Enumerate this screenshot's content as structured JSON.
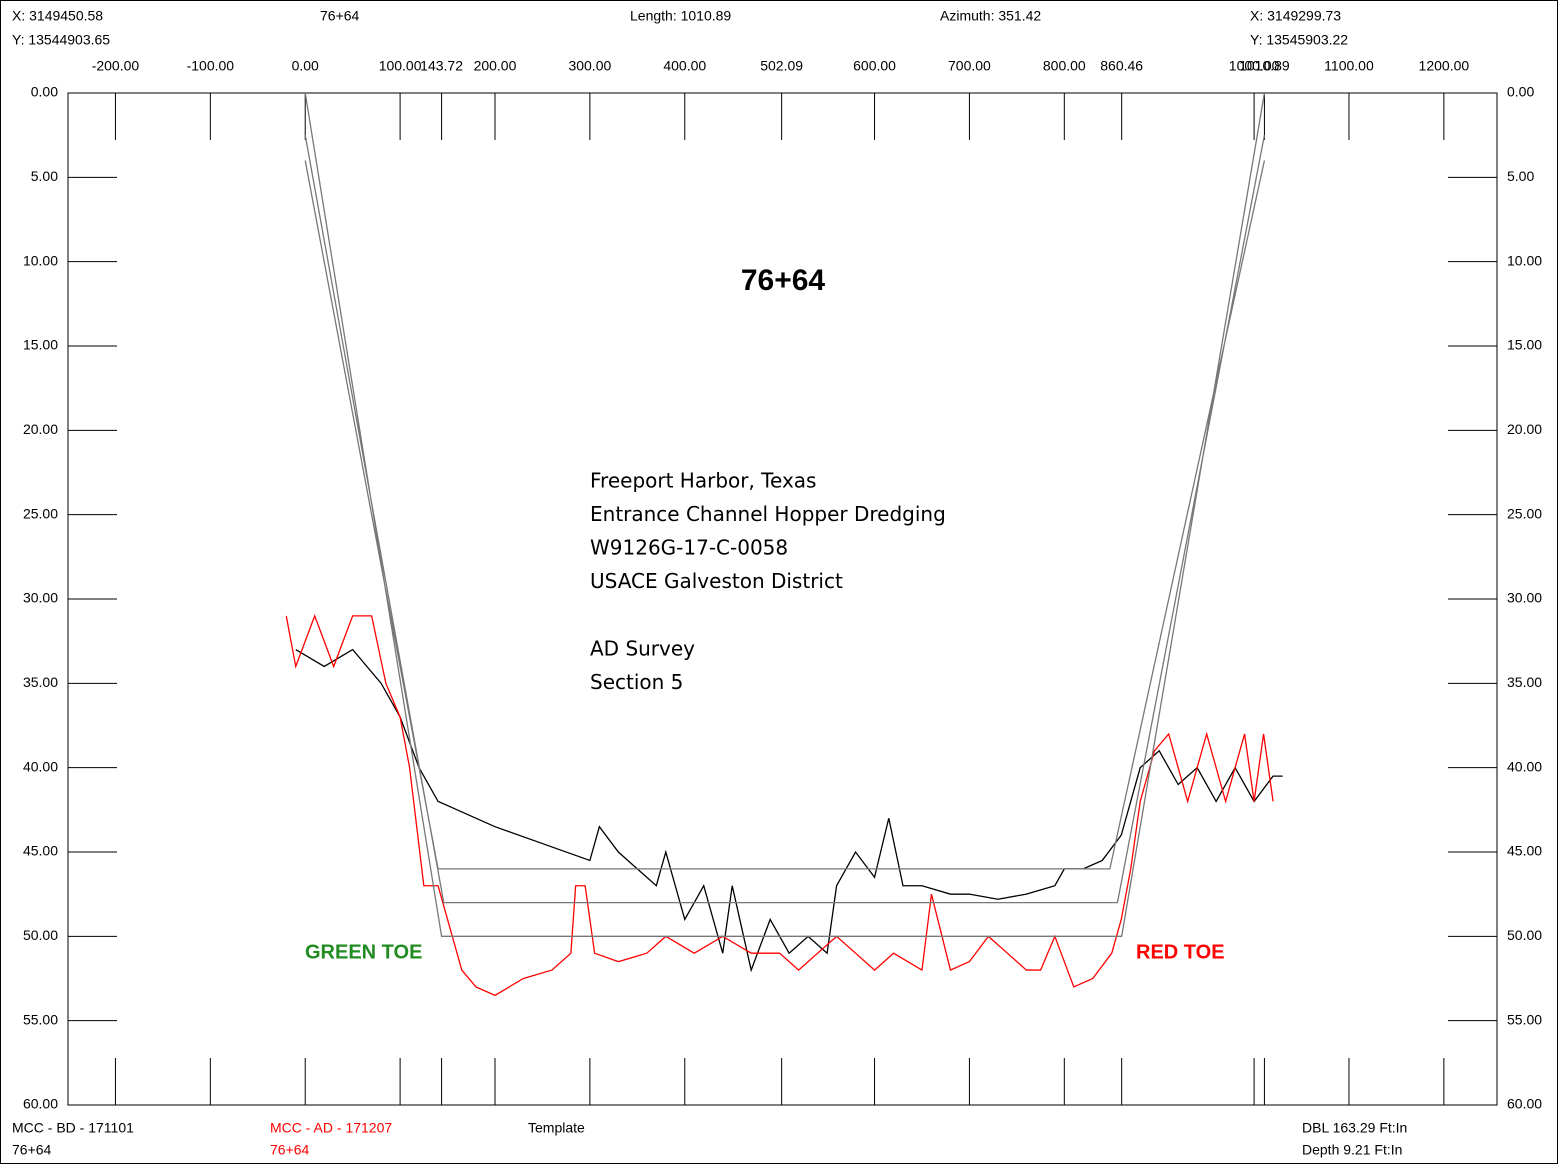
{
  "chart_data": {
    "type": "line",
    "title": "76+64",
    "start_x": "X: 3149450.58",
    "start_y": "Y: 13544903.65",
    "station": "76+64",
    "length": "Length: 1010.89",
    "azimuth": "Azimuth: 351.42",
    "end_x": "X: 3149299.73",
    "end_y": "Y: 13545903.22",
    "dbl": "DBL 163.29 Ft:In",
    "depth": "Depth 9.21 Ft:In",
    "notes": [
      "Freeport Harbor, Texas",
      "Entrance Channel Hopper Dredging",
      "W9126G-17-C-0058",
      "USACE Galveston District"
    ],
    "notes2": [
      "AD Survey",
      "Section 5"
    ],
    "green_toe": "GREEN TOE",
    "red_toe": "RED TOE",
    "xlim": [
      -250,
      1256
    ],
    "ylim": [
      0,
      60
    ],
    "y_inverted": true,
    "xticks": [
      {
        "value": -200,
        "label": "-200.00"
      },
      {
        "value": -100,
        "label": "-100.00"
      },
      {
        "value": 0,
        "label": "0.00"
      },
      {
        "value": 100,
        "label": "100.00"
      },
      {
        "value": 143.72,
        "label": "143.72"
      },
      {
        "value": 200,
        "label": "200.00"
      },
      {
        "value": 300,
        "label": "300.00"
      },
      {
        "value": 400,
        "label": "400.00"
      },
      {
        "value": 502.09,
        "label": "502.09"
      },
      {
        "value": 600,
        "label": "600.00"
      },
      {
        "value": 700,
        "label": "700.00"
      },
      {
        "value": 800,
        "label": "800.00"
      },
      {
        "value": 860.46,
        "label": "860.46"
      },
      {
        "value": 1000,
        "label": "1000.00"
      },
      {
        "value": 1010.89,
        "label": "1010.89"
      },
      {
        "value": 1100,
        "label": "1100.00"
      },
      {
        "value": 1200,
        "label": "1200.00"
      }
    ],
    "yticks": [
      {
        "value": 0,
        "label": "0.00"
      },
      {
        "value": 5,
        "label": "5.00"
      },
      {
        "value": 10,
        "label": "10.00"
      },
      {
        "value": 15,
        "label": "15.00"
      },
      {
        "value": 20,
        "label": "20.00"
      },
      {
        "value": 25,
        "label": "25.00"
      },
      {
        "value": 30,
        "label": "30.00"
      },
      {
        "value": 35,
        "label": "35.00"
      },
      {
        "value": 40,
        "label": "40.00"
      },
      {
        "value": 45,
        "label": "45.00"
      },
      {
        "value": 50,
        "label": "50.00"
      },
      {
        "value": 55,
        "label": "55.00"
      },
      {
        "value": 60,
        "label": "60.00"
      }
    ],
    "series": [
      {
        "name": "MCC - BD - 171101",
        "station": "76+64",
        "color": "#000000",
        "x": [
          -10,
          20,
          50,
          80,
          100,
          120,
          140,
          160,
          200,
          250,
          300,
          310,
          330,
          350,
          370,
          380,
          400,
          420,
          440,
          450,
          470,
          490,
          510,
          530,
          550,
          560,
          580,
          600,
          615,
          630,
          650,
          680,
          700,
          730,
          760,
          790,
          800,
          820,
          840,
          860,
          880,
          900,
          920,
          940,
          960,
          980,
          1000,
          1020,
          1030
        ],
        "values": [
          33,
          34,
          33,
          35,
          37,
          40,
          42,
          42.5,
          43.5,
          44.5,
          45.5,
          43.5,
          45,
          46,
          47,
          45,
          49,
          47,
          51,
          47,
          52,
          49,
          51,
          50,
          51,
          47,
          45,
          46.5,
          43,
          47,
          47,
          47.5,
          47.5,
          47.8,
          47.5,
          47,
          46,
          46,
          45.5,
          44,
          40,
          39,
          41,
          40,
          42,
          40,
          42,
          40.5,
          40.5
        ]
      },
      {
        "name": "MCC - AD - 171207",
        "station": "76+64",
        "color": "#ff0000",
        "x": [
          -20,
          -10,
          10,
          30,
          50,
          70,
          85,
          100,
          110,
          125,
          140,
          150,
          165,
          180,
          200,
          230,
          260,
          280,
          285,
          295,
          305,
          330,
          360,
          380,
          410,
          440,
          470,
          500,
          520,
          540,
          560,
          580,
          600,
          620,
          650,
          660,
          680,
          700,
          720,
          740,
          760,
          775,
          790,
          810,
          830,
          850,
          860,
          870,
          880,
          895,
          910,
          930,
          950,
          970,
          990,
          1000,
          1010,
          1020
        ],
        "values": [
          31,
          34,
          31,
          34,
          31,
          31,
          35,
          37,
          40,
          47,
          47,
          49,
          52,
          53,
          53.5,
          52.5,
          52,
          51,
          47,
          47,
          51,
          51.5,
          51,
          50,
          51,
          50,
          51,
          51,
          52,
          51,
          50,
          51,
          52,
          51,
          52,
          47.5,
          52,
          51.5,
          50,
          51,
          52,
          52,
          50,
          53,
          52.5,
          51,
          49,
          46,
          42,
          39,
          38,
          42,
          38,
          42,
          38,
          42,
          38,
          42
        ]
      },
      {
        "name": "Template",
        "color": "#777777",
        "x": [
          0,
          143.72,
          860.46,
          1010.89,
          null,
          0,
          146,
          856,
          1010.89,
          null,
          0,
          140,
          848,
          1010.89
        ],
        "values": [
          0,
          50,
          50,
          0,
          null,
          2.5,
          48,
          48,
          2.5,
          null,
          4,
          46,
          46,
          4
        ]
      }
    ]
  }
}
